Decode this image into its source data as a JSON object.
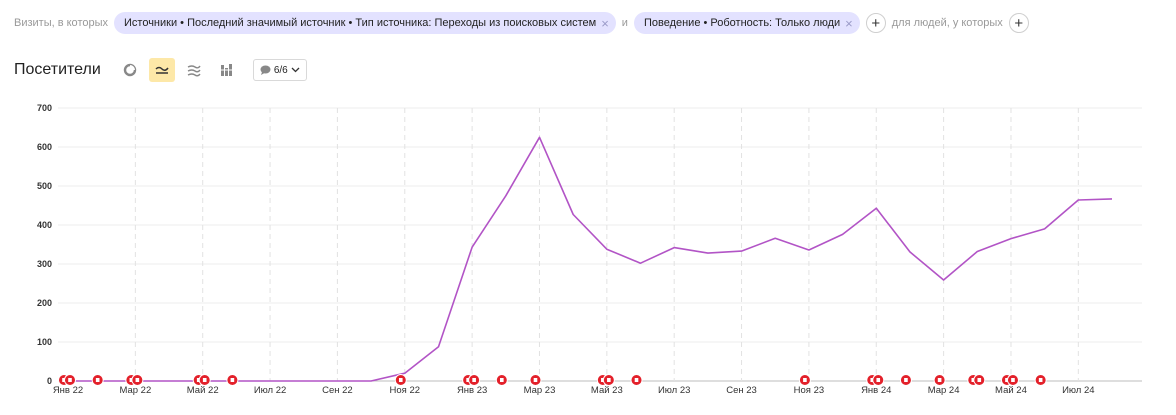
{
  "filter": {
    "prefix": "Визиты, в которых",
    "chip1": "Источники • Последний значимый источник • Тип источника: Переходы из поисковых систем",
    "conj": "и",
    "chip2": "Поведение • Роботность: Только люди",
    "people_text": "для людей, у которых",
    "close_glyph": "×",
    "plus_glyph": "+"
  },
  "toolbar": {
    "title": "Посетители",
    "annotations_label": "6/6",
    "icons": [
      "pie-chart-icon",
      "line-chart-icon",
      "stacked-area-icon",
      "bar-chart-icon",
      "comment-icon",
      "chevron-down-icon"
    ]
  },
  "colors": {
    "line": "#b254c6",
    "marker": "#e3202a",
    "accent": "#fde8a8",
    "chip": "#e3e2ff"
  },
  "chart_data": {
    "type": "line",
    "title": "",
    "xlabel": "",
    "ylabel": "",
    "ylim": [
      0,
      700
    ],
    "yticks": [
      0,
      100,
      200,
      300,
      400,
      500,
      600,
      700
    ],
    "grid": true,
    "x_tick_labels": [
      "Янв 22",
      "Мар 22",
      "Май 22",
      "Июл 22",
      "Сен 22",
      "Ноя 22",
      "Янв 23",
      "Мар 23",
      "Май 23",
      "Июл 23",
      "Сен 23",
      "Ноя 23",
      "Янв 24",
      "Мар 24",
      "Май 24",
      "Июл 24"
    ],
    "x": [
      "2022-01",
      "2022-02",
      "2022-03",
      "2022-04",
      "2022-05",
      "2022-06",
      "2022-07",
      "2022-08",
      "2022-09",
      "2022-10",
      "2022-11",
      "2022-12",
      "2023-01",
      "2023-02",
      "2023-03",
      "2023-04",
      "2023-05",
      "2023-06",
      "2023-07",
      "2023-08",
      "2023-09",
      "2023-10",
      "2023-11",
      "2023-12",
      "2024-01",
      "2024-02",
      "2024-03",
      "2024-04",
      "2024-05",
      "2024-06",
      "2024-07",
      "2024-08"
    ],
    "series": [
      {
        "values": [
          0,
          0,
          0,
          0,
          0,
          0,
          0,
          0,
          0,
          0,
          20,
          88,
          343,
          475,
          625,
          427,
          338,
          302,
          342,
          328,
          333,
          366,
          336,
          376,
          443,
          331,
          259,
          332,
          365,
          390,
          464,
          467
        ]
      }
    ],
    "annotation_marker_months": [
      "2022-01",
      "2022-01",
      "2022-02",
      "2022-03",
      "2022-03",
      "2022-05",
      "2022-05",
      "2022-06",
      "2022-11",
      "2023-01",
      "2023-01",
      "2023-02",
      "2023-03",
      "2023-05",
      "2023-05",
      "2023-06",
      "2023-11",
      "2024-01",
      "2024-01",
      "2024-02",
      "2024-03",
      "2024-04",
      "2024-04",
      "2024-05",
      "2024-05",
      "2024-06"
    ]
  }
}
